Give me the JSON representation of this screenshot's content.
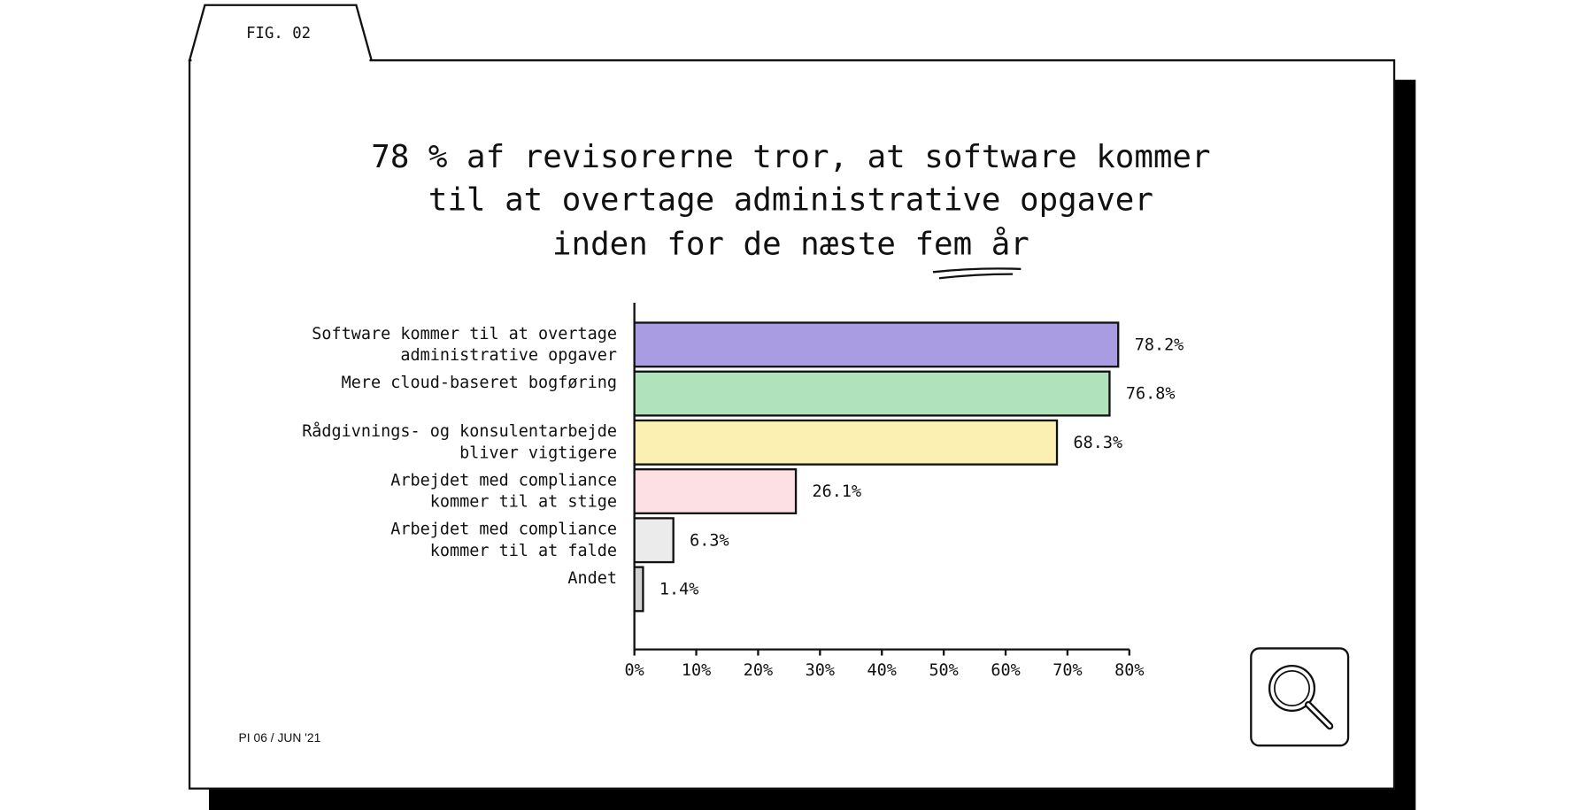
{
  "chart_data": {
    "type": "bar",
    "orientation": "horizontal",
    "tab_label": "FIG. 02",
    "title": [
      "78 % af revisorerne tror, at software kommer",
      "til at overtage administrative opgaver",
      "inden for de næste fem år"
    ],
    "footer": "PI 06 / JUN '21",
    "categories": [
      [
        "Software kommer til at overtage",
        "administrative opgaver"
      ],
      [
        "Mere cloud-baseret bogføring"
      ],
      [
        "Rådgivnings- og konsulentarbejde",
        "bliver vigtigere"
      ],
      [
        "Arbejdet med compliance",
        "kommer til at stige"
      ],
      [
        "Arbejdet med compliance",
        "kommer til at falde"
      ],
      [
        "Andet"
      ]
    ],
    "values": [
      78.2,
      76.8,
      68.3,
      26.1,
      6.3,
      1.4
    ],
    "value_labels": [
      "78.2%",
      "76.8%",
      "68.3%",
      "26.1%",
      "6.3%",
      "1.4%"
    ],
    "colors": [
      "#a99ce2",
      "#b0e3bc",
      "#fbf0b1",
      "#fde0e4",
      "#ebebeb",
      "#d2d2d2"
    ],
    "xlim": [
      0,
      80
    ],
    "xticks": [
      {
        "value": 0,
        "label": "0%"
      },
      {
        "value": 10,
        "label": "10%"
      },
      {
        "value": 20,
        "label": "20%"
      },
      {
        "value": 30,
        "label": "30%"
      },
      {
        "value": 40,
        "label": "40%"
      },
      {
        "value": 50,
        "label": "50%"
      },
      {
        "value": 60,
        "label": "60%"
      },
      {
        "value": 70,
        "label": "70%"
      },
      {
        "value": 80,
        "label": "80%"
      }
    ],
    "grid": false
  }
}
